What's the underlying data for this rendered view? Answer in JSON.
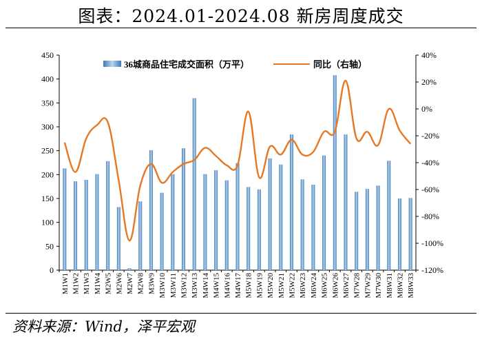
{
  "title": "图表：2024.01-2024.08 新房周度成交",
  "source": "资料来源：Wind，泽平宏观",
  "colors": {
    "bar": "#3d7ab8",
    "bar_light": "#b9d3ec",
    "line": "#e87722",
    "axis": "#000000"
  },
  "chart_data": {
    "type": "bar",
    "categories": [
      "M1W1",
      "M1W2",
      "M1W3",
      "M1W4",
      "M2W5",
      "M2W6",
      "M2W7",
      "M2W8",
      "M3W9",
      "M3W10",
      "M3W11",
      "M3W12",
      "M3W13",
      "M4W14",
      "M4W15",
      "M4W16",
      "M4W17",
      "M5W18",
      "M5W19",
      "M5W20",
      "M5W21",
      "M5W22",
      "M6W23",
      "M6W24",
      "M6W25",
      "M6W26",
      "M6W27",
      "M7W28",
      "M7W29",
      "M7W30",
      "M8W31",
      "M8W32",
      "M8W33"
    ],
    "series": [
      {
        "name": "36城商品住宅成交面积（万平）",
        "type": "bar",
        "axis": "left",
        "values": [
          213,
          186,
          189,
          201,
          228,
          132,
          4,
          144,
          251,
          162,
          201,
          255,
          360,
          201,
          209,
          188,
          224,
          174,
          169,
          234,
          221,
          284,
          190,
          179,
          240,
          408,
          284,
          164,
          170,
          177,
          229,
          150,
          151
        ]
      },
      {
        "name": "同比（右轴）",
        "type": "line",
        "axis": "right",
        "values": [
          -25,
          -47,
          -22,
          -12,
          -10,
          -53,
          -98,
          -57,
          -41,
          -55,
          -47,
          -41,
          -38,
          -29,
          -35,
          -42,
          -42,
          -2,
          -51,
          -28,
          -34,
          -23,
          -34,
          -32,
          -17,
          -17,
          21,
          -22,
          -17,
          -27,
          0,
          -16,
          -26
        ]
      }
    ],
    "yleft": {
      "min": 0,
      "max": 450,
      "ticks": [
        0,
        50,
        100,
        150,
        200,
        250,
        300,
        350,
        400,
        450
      ]
    },
    "yright": {
      "min": -120,
      "max": 40,
      "ticks": [
        -120,
        -100,
        -80,
        -60,
        -40,
        -20,
        0,
        20,
        40
      ],
      "unit": "%"
    },
    "legend": "top"
  }
}
